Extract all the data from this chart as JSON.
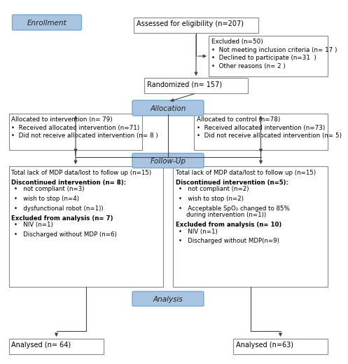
{
  "bg_color": "#ffffff",
  "box_blue_fill": "#a8c4e0",
  "box_blue_edge": "#7aaac8",
  "box_white_fill": "#ffffff",
  "box_white_edge": "#888888",
  "arrow_color": "#444444",
  "enrollment_label": "Enrollment",
  "eligibility_text": "Assessed for eligibility (n=207)",
  "excluded_title": "Excluded (n=50)",
  "excluded_lines": [
    "•  Not meeting inclusion criteria (n= 17 )",
    "•  Declined to participate (n=31  )",
    "•  Other reasons (n= 2 )"
  ],
  "randomized_text": "Randomized (n= 157)",
  "allocation_label": "Allocation",
  "alloc_intervention_title": "Allocated to intervention (n= 79)",
  "alloc_intervention_lines": [
    "•  Received allocated intervention (n=71)",
    "•  Did not receive allocated intervention (n= 8 )"
  ],
  "alloc_control_title": "Allocated to control (n=78)",
  "alloc_control_lines": [
    "•  Received allocated intervention (n=73)",
    "•  Did not receive allocated intervention (n= 5)"
  ],
  "followup_label": "Follow-Up",
  "fu_left_line0": "Total lack of MDP data/lost to follow up (n=15)",
  "fu_left_bold1": "Discontinued intervention (n= 8):",
  "fu_left_items1": [
    "•   not compliant (n=3)",
    "•   wish to stop (n=4)",
    "•   dysfunctional robot (n=1))"
  ],
  "fu_left_bold2": "Excluded from analysis (n= 7)",
  "fu_left_items2": [
    "•   NIV (n=1)",
    "•   Discharged without MDP (n=6)"
  ],
  "fu_right_line0": "Total lack of MDP data/lost to follow up (n=15)",
  "fu_right_bold1": "Discontinued intervention (n=5):",
  "fu_right_items1": [
    "•   not compliant (n=2)",
    "•   wish to stop (n=2)",
    "•   Acceptable SpO₂ changed to 85%\n    during intervention (n=1))"
  ],
  "fu_right_bold2": "Excluded from analysis (n= 10)",
  "fu_right_items2": [
    "•   NIV (n=1)",
    "•   Discharged without MDP(n=9)"
  ],
  "analysis_label": "Analysis",
  "analysis_left_text": "Analysed (n= 64)",
  "analysis_right_text": "Analysed (n=63)"
}
